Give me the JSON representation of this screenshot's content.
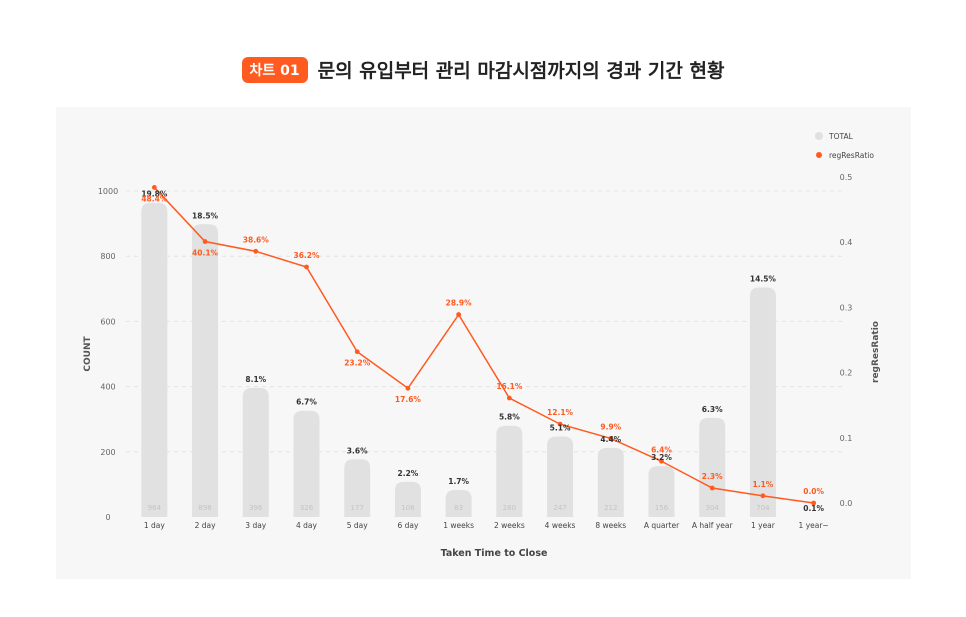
{
  "header": {
    "badge": "차트 01",
    "title": "문의 유입부터 관리 마감시점까지의 경과 기간 현황"
  },
  "colors": {
    "bar": "#e1e1e1",
    "line": "#ff5a1f",
    "badge": "#ff5a1f"
  },
  "chart_data": {
    "type": "bar",
    "xlabel": "Taken Time to Close",
    "ylabel": "COUNT",
    "y2label": "regResRatio",
    "ylim": [
      0,
      1000
    ],
    "y2lim": [
      0,
      0.5
    ],
    "yticks": [
      "0",
      "200",
      "400",
      "600",
      "800",
      "1000"
    ],
    "y2ticks": [
      "0.0",
      "0.1",
      "0.2",
      "0.3",
      "0.4",
      "0.5"
    ],
    "grid": true,
    "legend_position": "top-right",
    "categories": [
      "1 day",
      "2 day",
      "3 day",
      "4 day",
      "5 day",
      "6 day",
      "1 weeks",
      "2 weeks",
      "4 weeks",
      "8 weeks",
      "A quarter",
      "A half year",
      "1 year",
      "1 year~"
    ],
    "series": [
      {
        "name": "TOTAL",
        "type": "bar",
        "values": [
          964,
          898,
          396,
          326,
          177,
          108,
          83,
          280,
          247,
          212,
          156,
          304,
          704,
          0
        ],
        "value_labels": [
          "964",
          "898",
          "396",
          "326",
          "177",
          "108",
          "83",
          "280",
          "247",
          "212",
          "156",
          "304",
          "704",
          ""
        ],
        "percent_labels": [
          "19.8%",
          "18.5%",
          "8.1%",
          "6.7%",
          "3.6%",
          "2.2%",
          "1.7%",
          "5.8%",
          "5.1%",
          "4.4%",
          "3.2%",
          "6.3%",
          "14.5%",
          "0.1%"
        ]
      },
      {
        "name": "regResRatio",
        "type": "line",
        "axis": "right",
        "values": [
          0.484,
          0.401,
          0.386,
          0.362,
          0.232,
          0.176,
          0.289,
          0.161,
          0.121,
          0.099,
          0.064,
          0.023,
          0.011,
          0.0
        ],
        "labels": [
          "48.4%",
          "40.1%",
          "38.6%",
          "36.2%",
          "23.2%",
          "17.6%",
          "28.9%",
          "16.1%",
          "12.1%",
          "9.9%",
          "6.4%",
          "2.3%",
          "1.1%",
          "0.0%"
        ]
      }
    ]
  }
}
